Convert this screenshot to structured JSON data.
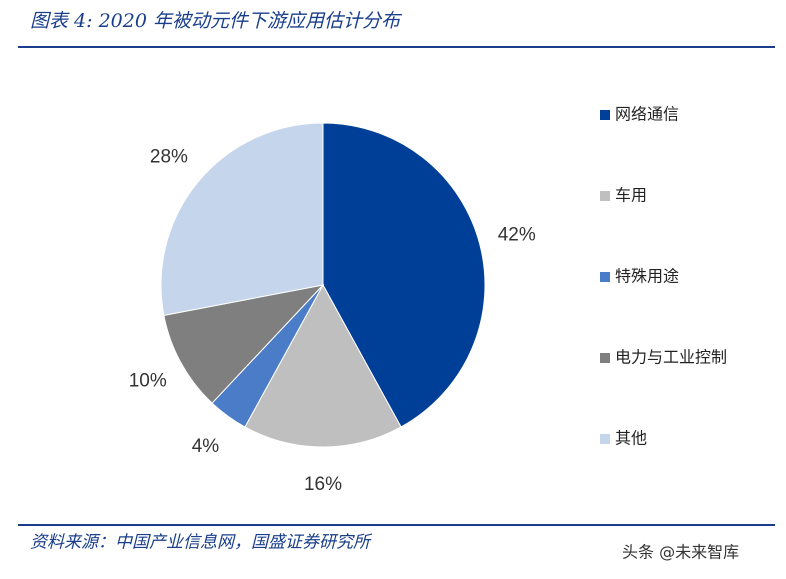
{
  "chart_data": {
    "type": "pie",
    "title": "图表 4: 2020 年被动元件下游应用估计分布",
    "categories": [
      "网络通信",
      "车用",
      "特殊用途",
      "电力与工业控制",
      "其他"
    ],
    "values": [
      42,
      16,
      4,
      10,
      28
    ],
    "value_labels": [
      "42%",
      "16%",
      "4%",
      "10%",
      "28%"
    ],
    "colors": [
      "#003f98",
      "#bfbfbf",
      "#4a7cc7",
      "#7f7f7f",
      "#c5d5ec"
    ],
    "legend": "right",
    "source": "资料来源：中国产业信息网，国盛证券研究所"
  },
  "watermark": "头条 @未来智库"
}
